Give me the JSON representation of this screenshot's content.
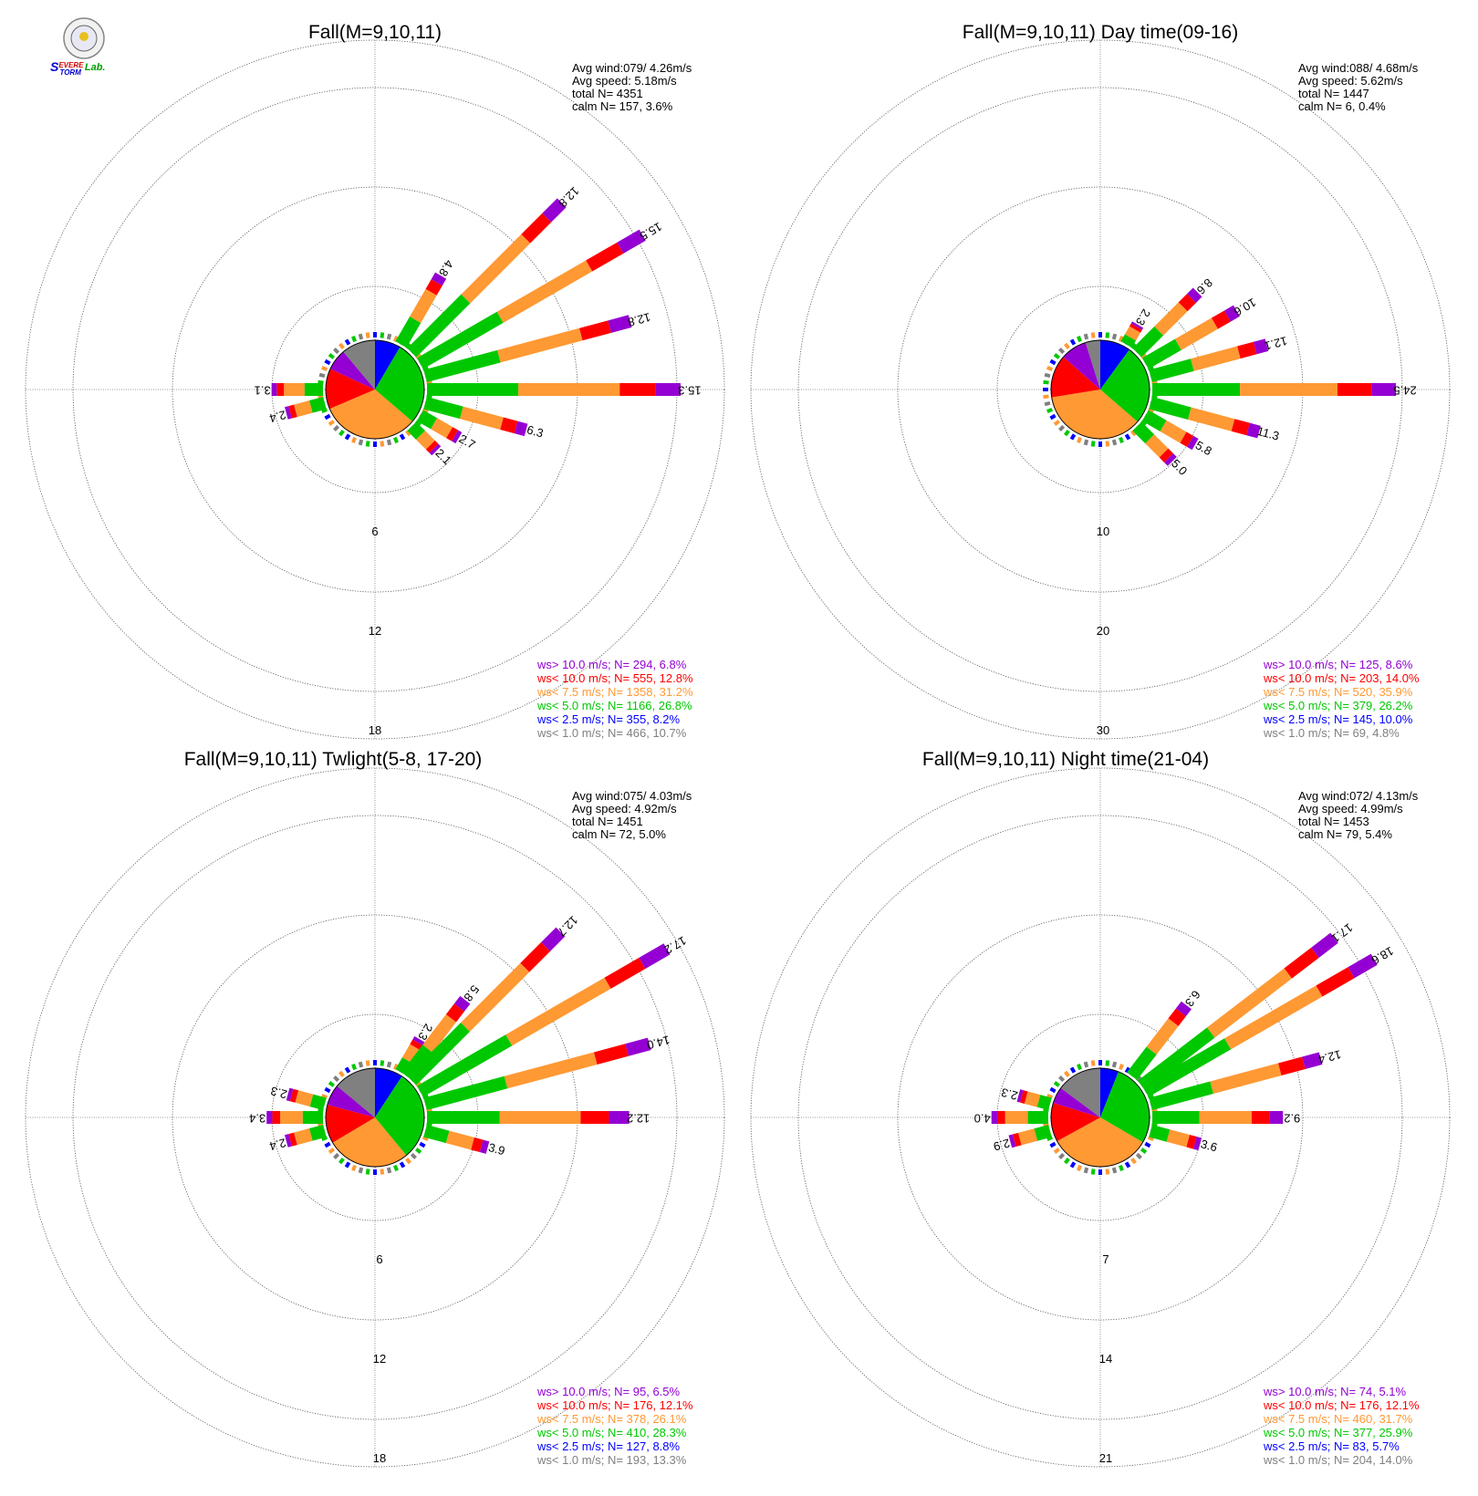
{
  "colors": {
    "gt10": "#9400d3",
    "lt10": "#ff0000",
    "lt7_5": "#ff9933",
    "lt5": "#00c800",
    "lt2_5": "#0000ff",
    "lt1": "#808080"
  },
  "logo": {
    "text_s": "S",
    "text_evere": "EVERE",
    "text_storm": "TORM",
    "text_lab": "Lab.",
    "icon": "emblem-icon"
  },
  "chart_data": [
    {
      "type": "polar-bar",
      "title": "Fall(M=9,10,11)",
      "info": {
        "avg_wind": "Avg wind:079/ 4.26m/s",
        "avg_speed": "Avg speed: 5.18m/s",
        "total": "total N=       4351",
        "calm": "calm N=     157,   3.6%"
      },
      "rings": [
        "6",
        "12",
        "18"
      ],
      "rmax": 18,
      "legend": [
        {
          "label": "ws> 10.0 m/s; N=   294,  6.8%",
          "key": "gt10"
        },
        {
          "label": "ws< 10.0 m/s; N=   555, 12.8%",
          "key": "lt10"
        },
        {
          "label": "ws<  7.5 m/s; N=  1358, 31.2%",
          "key": "lt7_5"
        },
        {
          "label": "ws<  5.0 m/s; N=  1166, 26.8%",
          "key": "lt5"
        },
        {
          "label": "ws<  2.5 m/s; N=   355,  8.2%",
          "key": "lt2_5"
        },
        {
          "label": "ws<  1.0 m/s; N=   466, 10.7%",
          "key": "lt1"
        }
      ],
      "pie": [
        8.2,
        26.8,
        31.2,
        12.8,
        6.8,
        10.7
      ],
      "bars": [
        {
          "dir": 30,
          "label": "4.8",
          "total": 4.8
        },
        {
          "dir": 45,
          "label": "12.8",
          "total": 12.8
        },
        {
          "dir": 60,
          "label": "15.5",
          "total": 15.5
        },
        {
          "dir": 75,
          "label": "12.8",
          "total": 12.8
        },
        {
          "dir": 90,
          "label": "15.3",
          "total": 15.3
        },
        {
          "dir": 105,
          "label": "6.3",
          "total": 6.3
        },
        {
          "dir": 120,
          "label": "2.7",
          "total": 2.7
        },
        {
          "dir": 135,
          "label": "2.1",
          "total": 2.1
        },
        {
          "dir": 255,
          "label": "2.4",
          "total": 2.4
        },
        {
          "dir": 270,
          "label": "3.1",
          "total": 3.1
        }
      ]
    },
    {
      "type": "polar-bar",
      "title": "Fall(M=9,10,11) Day time(09-16)",
      "info": {
        "avg_wind": "Avg wind:088/ 4.68m/s",
        "avg_speed": "Avg speed: 5.62m/s",
        "total": "total N=       1447",
        "calm": "calm N=       6,   0.4%"
      },
      "rings": [
        "10",
        "20",
        "30"
      ],
      "rmax": 30,
      "legend": [
        {
          "label": "ws> 10.0 m/s; N=   125,  8.6%",
          "key": "gt10"
        },
        {
          "label": "ws< 10.0 m/s; N=   203, 14.0%",
          "key": "lt10"
        },
        {
          "label": "ws<  7.5 m/s; N=   520, 35.9%",
          "key": "lt7_5"
        },
        {
          "label": "ws<  5.0 m/s; N=   379, 26.2%",
          "key": "lt5"
        },
        {
          "label": "ws<  2.5 m/s; N=   145, 10.0%",
          "key": "lt2_5"
        },
        {
          "label": "ws<  1.0 m/s; N=    69,  4.8%",
          "key": "lt1"
        }
      ],
      "pie": [
        10.0,
        26.2,
        35.9,
        14.0,
        8.6,
        4.8
      ],
      "bars": [
        {
          "dir": 30,
          "label": "2.3",
          "total": 2.3
        },
        {
          "dir": 45,
          "label": "8.6",
          "total": 8.6
        },
        {
          "dir": 60,
          "label": "10.6",
          "total": 10.6
        },
        {
          "dir": 75,
          "label": "12.1",
          "total": 12.1
        },
        {
          "dir": 90,
          "label": "24.5",
          "total": 24.5
        },
        {
          "dir": 105,
          "label": "11.3",
          "total": 11.3
        },
        {
          "dir": 120,
          "label": "5.8",
          "total": 5.8
        },
        {
          "dir": 135,
          "label": "5.0",
          "total": 5.0
        }
      ]
    },
    {
      "type": "polar-bar",
      "title": "Fall(M=9,10,11) Twlight(5-8, 17-20)",
      "info": {
        "avg_wind": "Avg wind:075/ 4.03m/s",
        "avg_speed": "Avg speed: 4.92m/s",
        "total": "total N=       1451",
        "calm": "calm N=      72,   5.0%"
      },
      "rings": [
        "6",
        "12",
        "18"
      ],
      "rmax": 18,
      "legend": [
        {
          "label": "ws> 10.0 m/s; N=    95,  6.5%",
          "key": "gt10"
        },
        {
          "label": "ws< 10.0 m/s; N=   176, 12.1%",
          "key": "lt10"
        },
        {
          "label": "ws<  7.5 m/s; N=   378, 26.1%",
          "key": "lt7_5"
        },
        {
          "label": "ws<  5.0 m/s; N=   410, 28.3%",
          "key": "lt5"
        },
        {
          "label": "ws<  2.5 m/s; N=   127,  8.8%",
          "key": "lt2_5"
        },
        {
          "label": "ws<  1.0 m/s; N=   193, 13.3%",
          "key": "lt1"
        }
      ],
      "pie": [
        8.8,
        28.3,
        26.1,
        12.1,
        6.5,
        13.3
      ],
      "bars": [
        {
          "dir": 30,
          "label": "2.3",
          "total": 2.3
        },
        {
          "dir": 37.5,
          "label": "5.8",
          "total": 5.8
        },
        {
          "dir": 45,
          "label": "12.7",
          "total": 12.7
        },
        {
          "dir": 60,
          "label": "17.2",
          "total": 17.2
        },
        {
          "dir": 75,
          "label": "14.0",
          "total": 14.0
        },
        {
          "dir": 90,
          "label": "12.2",
          "total": 12.2
        },
        {
          "dir": 105,
          "label": "3.9",
          "total": 3.9
        },
        {
          "dir": 255,
          "label": "2.4",
          "total": 2.4
        },
        {
          "dir": 270,
          "label": "3.4",
          "total": 3.4
        },
        {
          "dir": 285,
          "label": "2.3",
          "total": 2.3
        }
      ]
    },
    {
      "type": "polar-bar",
      "title": "Fall(M=9,10,11) Night time(21-04)",
      "info": {
        "avg_wind": "Avg wind:072/ 4.13m/s",
        "avg_speed": "Avg speed: 4.99m/s",
        "total": "total N=       1453",
        "calm": "calm N=      79,   5.4%"
      },
      "rings": [
        "7",
        "14",
        "21"
      ],
      "rmax": 21,
      "legend": [
        {
          "label": "ws> 10.0 m/s; N=    74,  5.1%",
          "key": "gt10"
        },
        {
          "label": "ws< 10.0 m/s; N=   176, 12.1%",
          "key": "lt10"
        },
        {
          "label": "ws<  7.5 m/s; N=   460, 31.7%",
          "key": "lt7_5"
        },
        {
          "label": "ws<  5.0 m/s; N=   377, 25.9%",
          "key": "lt5"
        },
        {
          "label": "ws<  2.5 m/s; N=    83,  5.7%",
          "key": "lt2_5"
        },
        {
          "label": "ws<  1.0 m/s; N=   204, 14.0%",
          "key": "lt1"
        }
      ],
      "pie": [
        5.7,
        25.9,
        31.7,
        12.1,
        5.1,
        14.0
      ],
      "bars": [
        {
          "dir": 37.5,
          "label": "6.3",
          "total": 6.3
        },
        {
          "dir": 52.5,
          "label": "17.1",
          "total": 17.1
        },
        {
          "dir": 60,
          "label": "18.6",
          "total": 18.6
        },
        {
          "dir": 75,
          "label": "12.4",
          "total": 12.4
        },
        {
          "dir": 90,
          "label": "9.2",
          "total": 9.2
        },
        {
          "dir": 105,
          "label": "3.6",
          "total": 3.6
        },
        {
          "dir": 255,
          "label": "2.9",
          "total": 2.9
        },
        {
          "dir": 270,
          "label": "4.0",
          "total": 4.0
        },
        {
          "dir": 285,
          "label": "2.3",
          "total": 2.3
        }
      ]
    }
  ]
}
